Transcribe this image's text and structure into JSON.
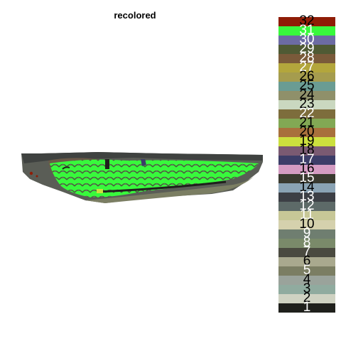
{
  "title": "recolored",
  "legend": [
    {
      "label": "32",
      "color": "#8f1c06",
      "text_color": "#000000"
    },
    {
      "label": "31",
      "color": "#38f93c",
      "text_color": "#ffffff"
    },
    {
      "label": "30",
      "color": "#6c6ba3",
      "text_color": "#ffffff"
    },
    {
      "label": "29",
      "color": "#4f5a34",
      "text_color": "#ffffff"
    },
    {
      "label": "28",
      "color": "#7a5a3a",
      "text_color": "#ffffff"
    },
    {
      "label": "27",
      "color": "#b3a63c",
      "text_color": "#ffffff"
    },
    {
      "label": "26",
      "color": "#a59c4e",
      "text_color": "#000000"
    },
    {
      "label": "25",
      "color": "#6a9c93",
      "text_color": "#000000"
    },
    {
      "label": "24",
      "color": "#8f906a",
      "text_color": "#000000"
    },
    {
      "label": "23",
      "color": "#cad8c0",
      "text_color": "#000000"
    },
    {
      "label": "22",
      "color": "#7d6d3c",
      "text_color": "#ffffff"
    },
    {
      "label": "21",
      "color": "#82a854",
      "text_color": "#000000"
    },
    {
      "label": "20",
      "color": "#a8703c",
      "text_color": "#000000"
    },
    {
      "label": "19",
      "color": "#cce03e",
      "text_color": "#000000"
    },
    {
      "label": "18",
      "color": "#7a5a72",
      "text_color": "#000000"
    },
    {
      "label": "17",
      "color": "#3c3d68",
      "text_color": "#ffffff"
    },
    {
      "label": "16",
      "color": "#d49bc2",
      "text_color": "#000000"
    },
    {
      "label": "15",
      "color": "#3a3a30",
      "text_color": "#ffffff"
    },
    {
      "label": "14",
      "color": "#8aa3b4",
      "text_color": "#000000"
    },
    {
      "label": "13",
      "color": "#3c3f45",
      "text_color": "#ffffff"
    },
    {
      "label": "12",
      "color": "#5d6a68",
      "text_color": "#ffffff"
    },
    {
      "label": "11",
      "color": "#c7c797",
      "text_color": "#ffffff"
    },
    {
      "label": "10",
      "color": "#d5d1ad",
      "text_color": "#000000"
    },
    {
      "label": "9",
      "color": "#6f7e70",
      "text_color": "#ffffff"
    },
    {
      "label": "8",
      "color": "#7a8a6a",
      "text_color": "#ffffff"
    },
    {
      "label": "7",
      "color": "#4a4a40",
      "text_color": "#ffffff"
    },
    {
      "label": "6",
      "color": "#a9a98e",
      "text_color": "#000000"
    },
    {
      "label": "5",
      "color": "#7b7e63",
      "text_color": "#ffffff"
    },
    {
      "label": "4",
      "color": "#9aa39b",
      "text_color": "#000000"
    },
    {
      "label": "3",
      "color": "#90ab9f",
      "text_color": "#000000"
    },
    {
      "label": "2",
      "color": "#cfd2c2",
      "text_color": "#000000"
    },
    {
      "label": "1",
      "color": "#1f201c",
      "text_color": "#ffffff"
    }
  ]
}
